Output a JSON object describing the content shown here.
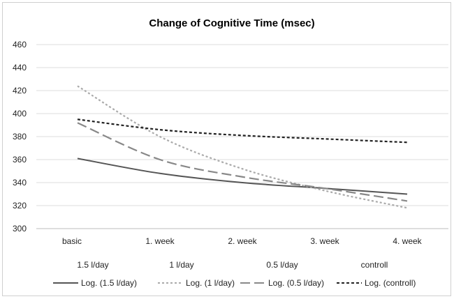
{
  "chart_data": {
    "type": "line",
    "title": "Change of Cognitive Time (msec)",
    "xlabel": "",
    "ylabel": "",
    "categories": [
      "basic",
      "1. week",
      "2. week",
      "3. week",
      "4. week"
    ],
    "sublabels": [
      "1.5 l/day",
      "1 l/day",
      "0.5 l/day",
      "controll"
    ],
    "ylim": [
      300,
      460
    ],
    "yticks": [
      300,
      320,
      340,
      360,
      380,
      400,
      420,
      440,
      460
    ],
    "grid": true,
    "legend_position": "bottom",
    "series": [
      {
        "name": "Log. (1.5 l/day)",
        "legend_prefix": "Log.",
        "legend_suffix": "(1.5 l/day)",
        "style": "solid",
        "color": "#555555",
        "values": [
          361,
          348,
          340,
          335,
          330
        ]
      },
      {
        "name": "Log. (1 l/day)",
        "legend_prefix": "Log.",
        "legend_suffix": "(1 l/day)",
        "style": "dotted",
        "color": "#aaaaaa",
        "values": [
          424,
          380,
          352,
          333,
          318
        ]
      },
      {
        "name": "Log. (0.5 l/day)",
        "legend_prefix": "Log.",
        "legend_suffix": "(0.5 l/day)",
        "style": "dashed",
        "color": "#888888",
        "values": [
          392,
          360,
          345,
          335,
          324
        ]
      },
      {
        "name": "Log. (controll)",
        "legend_prefix": "Log.",
        "legend_suffix": "(controll)",
        "style": "shortdash",
        "color": "#222222",
        "values": [
          395,
          386,
          381,
          378,
          375
        ]
      }
    ]
  }
}
